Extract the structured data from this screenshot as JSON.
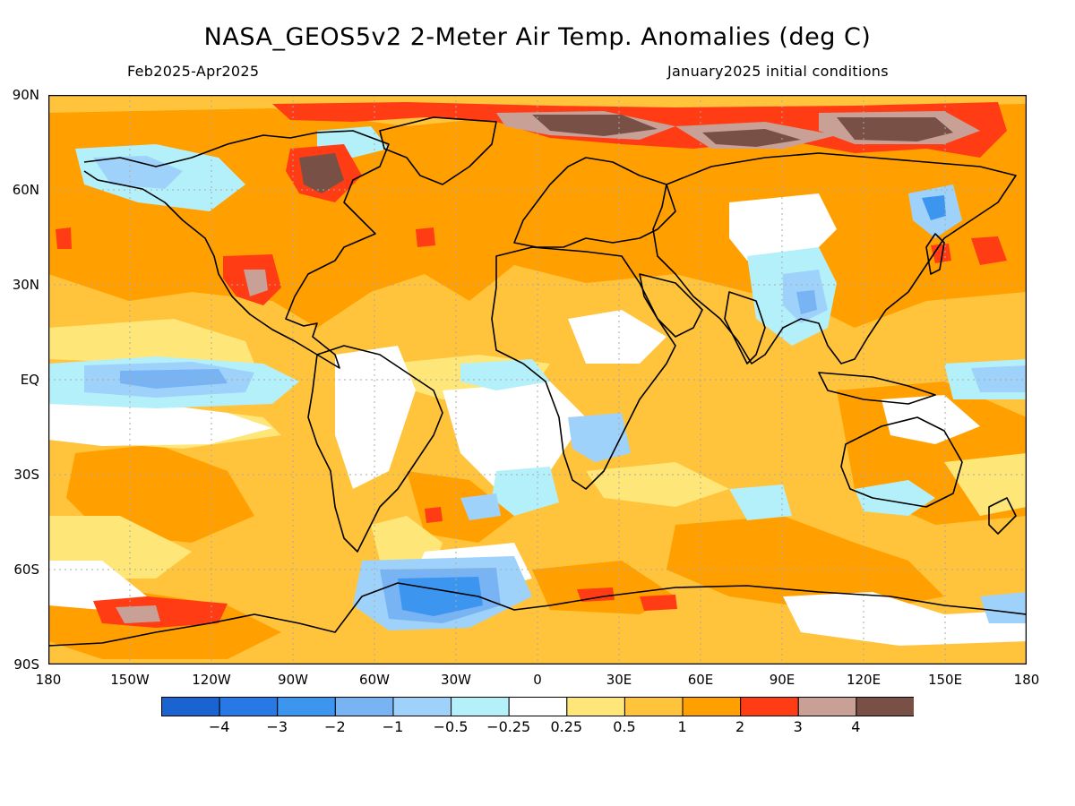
{
  "header": {
    "title": "NASA_GEOS5v2 2-Meter Air Temp. Anomalies (deg C)",
    "period": "Feb2025-Apr2025",
    "init": "January2025 initial conditions"
  },
  "axes": {
    "lat_labels": [
      "90N",
      "60N",
      "30N",
      "EQ",
      "30S",
      "60S",
      "90S"
    ],
    "lon_labels": [
      "180",
      "150W",
      "120W",
      "90W",
      "60W",
      "30W",
      "0",
      "30E",
      "60E",
      "90E",
      "120E",
      "150E",
      "180"
    ]
  },
  "colorbar": {
    "colors": [
      "#1a64d2",
      "#2878e6",
      "#3c96f0",
      "#78b4f4",
      "#9ed2fa",
      "#b4f0fa",
      "#ffffff",
      "#ffe678",
      "#ffc33c",
      "#ffa000",
      "#ff3c14",
      "#c8a096",
      "#785046"
    ],
    "labels": [
      "−4",
      "−3",
      "−2",
      "−1",
      "−0.5",
      "−0.25",
      "0.25",
      "0.5",
      "1",
      "2",
      "3",
      "4"
    ]
  },
  "map": {
    "land_line_color": "#000000",
    "grid_color": "#aaaaaa"
  }
}
